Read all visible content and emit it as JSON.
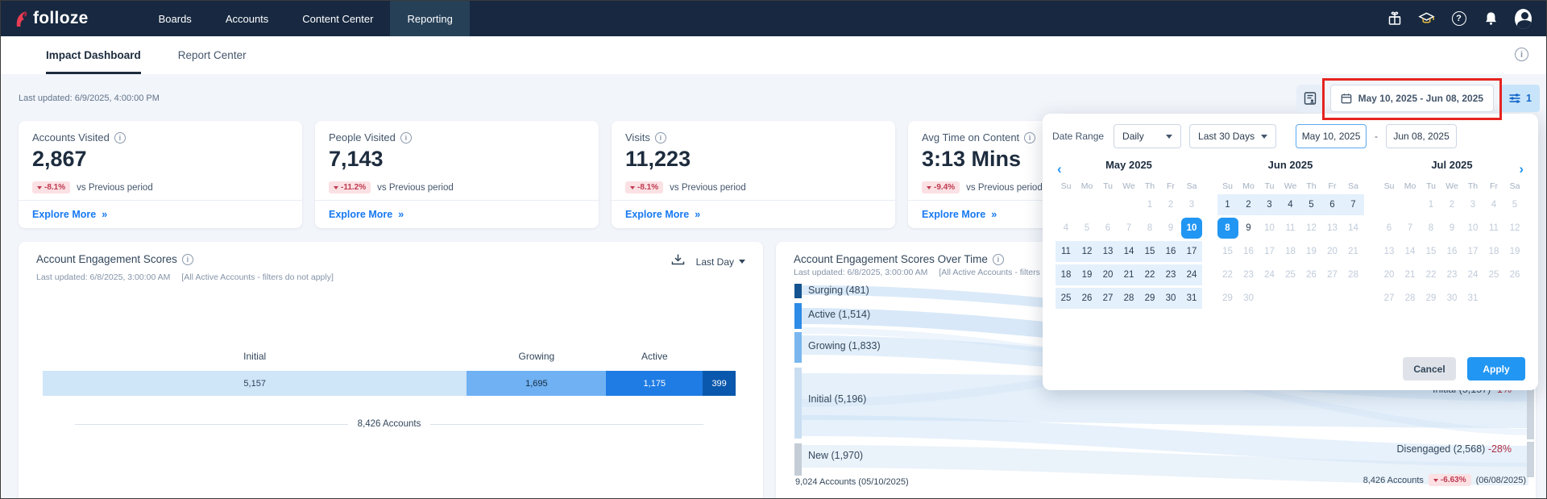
{
  "navbar": {
    "brand": "folloze",
    "items": [
      "Boards",
      "Accounts",
      "Content Center",
      "Reporting"
    ],
    "active_item": "Reporting"
  },
  "tabs": {
    "items": [
      "Impact Dashboard",
      "Report Center"
    ],
    "active": "Impact Dashboard"
  },
  "toolbar": {
    "last_updated": "Last updated: 6/9/2025, 4:00:00 PM",
    "date_range": "May 10, 2025 - Jun 08, 2025",
    "filter_badge": "1"
  },
  "glyphs": {
    "info": "i",
    "help": "?",
    "explore": "»",
    "prev": "‹",
    "next": "›"
  },
  "kpis": [
    {
      "title": "Accounts Visited",
      "value": "2,867",
      "delta": "-8.1%",
      "note": "vs Previous period",
      "explore": "Explore More"
    },
    {
      "title": "People Visited",
      "value": "7,143",
      "delta": "-11.2%",
      "note": "vs Previous period",
      "explore": "Explore More"
    },
    {
      "title": "Visits",
      "value": "11,223",
      "delta": "-8.1%",
      "note": "vs Previous period",
      "explore": "Explore More"
    },
    {
      "title": "Avg Time on Content",
      "value": "3:13 Mins",
      "delta": "-9.4%",
      "note": "vs Previous period",
      "explore": "Explore More"
    }
  ],
  "engagement": {
    "title": "Account Engagement Scores",
    "subtitle": "Last updated: 6/8/2025, 3:00:00 AM",
    "filters_note": "[All Active Accounts - filters do not apply]",
    "range_label": "Last Day",
    "total": "8,426 Accounts"
  },
  "overtime": {
    "title": "Account Engagement Scores Over Time",
    "subtitle": "Last updated: 6/8/2025, 3:00:00 AM",
    "filters_note": "[All Active Accounts - filters do not apply]",
    "start_total": "9,024 Accounts",
    "start_date": "(05/10/2025)",
    "end_total": "8,426 Accounts",
    "end_delta": "-6.63%",
    "end_date": "(06/08/2025)"
  },
  "date_picker": {
    "label": "Date Range",
    "granularity": "Daily",
    "preset": "Last 30 Days",
    "start": "May 10, 2025",
    "separator": "-",
    "end": "Jun 08, 2025",
    "cancel": "Cancel",
    "apply": "Apply",
    "weekdays": [
      "Su",
      "Mo",
      "Tu",
      "We",
      "Th",
      "Fr",
      "Sa"
    ],
    "months": [
      {
        "label": "May 2025",
        "weeks": [
          [
            "",
            "",
            "",
            "",
            "1:m",
            "2:m",
            "3:m"
          ],
          [
            "4:m",
            "5:m",
            "6:m",
            "7:m",
            "8:m",
            "9:m",
            "10:x"
          ],
          [
            "11:i",
            "12:i",
            "13:i",
            "14:i",
            "15:i",
            "16:i",
            "17:i"
          ],
          [
            "18:i",
            "19:i",
            "20:i",
            "21:i",
            "22:i",
            "23:i",
            "24:i"
          ],
          [
            "25:i",
            "26:i",
            "27:i",
            "28:i",
            "29:i",
            "30:i",
            "31:i"
          ]
        ]
      },
      {
        "label": "Jun 2025",
        "weeks": [
          [
            "1:i",
            "2:i",
            "3:i",
            "4:i",
            "5:i",
            "6:i",
            "7:i"
          ],
          [
            "8:x",
            "9:n",
            "10:m",
            "11:m",
            "12:m",
            "13:m",
            "14:m"
          ],
          [
            "15:m",
            "16:m",
            "17:m",
            "18:m",
            "19:m",
            "20:m",
            "21:m"
          ],
          [
            "22:m",
            "23:m",
            "24:m",
            "25:m",
            "26:m",
            "27:m",
            "28:m"
          ],
          [
            "29:m",
            "30:m",
            "",
            "",
            "",
            "",
            ""
          ]
        ]
      },
      {
        "label": "Jul 2025",
        "weeks": [
          [
            "",
            "",
            "1:m",
            "2:m",
            "3:m",
            "4:m",
            "5:m"
          ],
          [
            "6:m",
            "7:m",
            "8:m",
            "9:m",
            "10:m",
            "11:m",
            "12:m"
          ],
          [
            "13:m",
            "14:m",
            "15:m",
            "16:m",
            "17:m",
            "18:m",
            "19:m"
          ],
          [
            "20:m",
            "21:m",
            "22:m",
            "23:m",
            "24:m",
            "25:m",
            "26:m"
          ],
          [
            "27:m",
            "28:m",
            "29:m",
            "30:m",
            "31:m",
            "",
            ""
          ]
        ]
      }
    ]
  },
  "chart_data": [
    {
      "type": "bar",
      "title": "Account Engagement Scores",
      "stacked": true,
      "total": 8426,
      "total_label": "8,426 Accounts",
      "segments": [
        {
          "label": "Initial",
          "value": 5157,
          "display": "5,157"
        },
        {
          "label": "Growing",
          "value": 1695,
          "display": "1,695"
        },
        {
          "label": "Active",
          "value": 1175,
          "display": "1,175"
        },
        {
          "label": "",
          "value": 399,
          "display": "399"
        }
      ],
      "colors": [
        "#cfe5f8",
        "#6fb1f2",
        "#1f7ce4",
        "#0a58ad"
      ]
    },
    {
      "type": "sankey",
      "title": "Account Engagement Scores Over Time",
      "left_nodes": [
        {
          "label": "Surging (481)",
          "value": 481,
          "color": "#14538f"
        },
        {
          "label": "Active (1,514)",
          "value": 1514,
          "color": "#2e8be6"
        },
        {
          "label": "Growing (1,833)",
          "value": 1833,
          "color": "#79b6ee"
        },
        {
          "label": "Initial (5,196)",
          "value": 5196,
          "color": "#cadef2"
        },
        {
          "label": "New (1,970)",
          "value": 1970,
          "color": "#c4cdd6"
        }
      ],
      "right_nodes_visible": [
        {
          "label": "Initial (5,157)",
          "delta": "-1%"
        },
        {
          "label": "Disengaged (2,568)",
          "delta": "-28%"
        }
      ],
      "start": {
        "total": 9024,
        "date": "05/10/2025"
      },
      "end": {
        "total": 8426,
        "delta_pct": -6.63,
        "date": "06/08/2025"
      }
    }
  ]
}
